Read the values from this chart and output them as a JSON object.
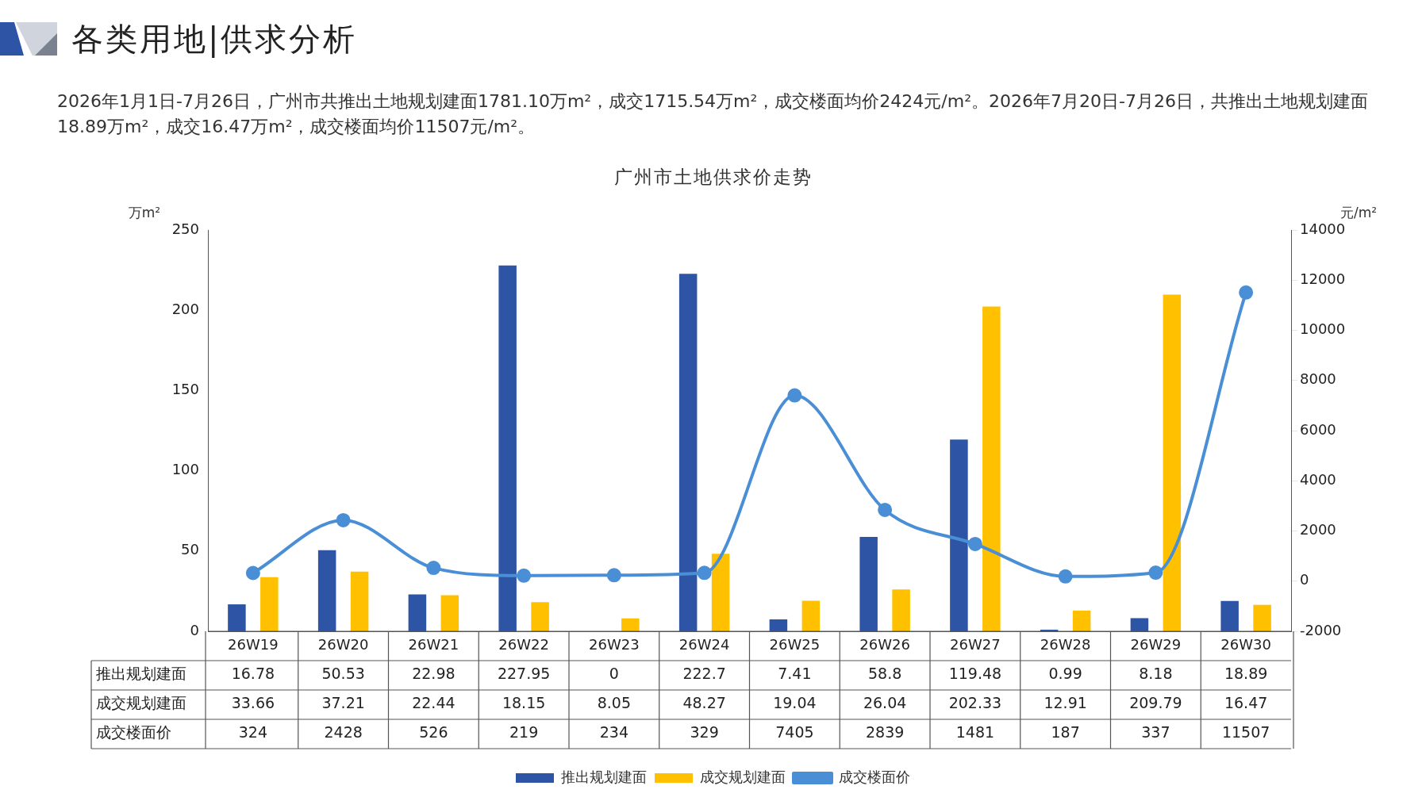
{
  "chart_data": {
    "type": "bar",
    "title": "广州市土地供求价走势",
    "subtitle": "各类用地|供求分析",
    "annotations": [
      "2026年1月1日-7月26日，广州市共推出土地规划建面1781.10万m²，成交1715.54万m²，成交楼面均价2424元/m²。2026年7月20日-7月26日，共推出土地规划建面18.89万m²，成交16.47万m²，成交楼面均价11507元/m²。"
    ],
    "ylabel": "万m²",
    "y2label": "元/m²",
    "categories": [
      "26W19",
      "26W20",
      "26W21",
      "26W22",
      "26W23",
      "26W24",
      "26W25",
      "26W26",
      "26W27",
      "26W28",
      "26W29",
      "26W30"
    ],
    "series": [
      {
        "name": "推出规划建面",
        "color": "#2e55a5",
        "values": [
          16.78,
          50.53,
          22.98,
          227.95,
          0,
          222.7,
          7.41,
          58.8,
          119.48,
          0.99,
          8.18,
          18.89
        ]
      },
      {
        "name": "成交规划建面",
        "color": "#ffc000",
        "values": [
          33.66,
          37.21,
          22.44,
          18.15,
          8.05,
          48.27,
          19.04,
          26.04,
          202.33,
          12.91,
          209.79,
          16.47
        ]
      },
      {
        "name": "成交楼面价",
        "type": "line",
        "axis": "y2",
        "color": "#4a8fd6",
        "values": [
          324,
          2428,
          526,
          219,
          234,
          329,
          7405,
          2839,
          1481,
          187,
          337,
          11507
        ]
      }
    ],
    "ylim": [
      0,
      250
    ],
    "yticks": [
      0,
      50,
      100,
      150,
      200,
      250
    ],
    "y2lim": [
      -2000,
      14000
    ],
    "y2ticks": [
      -2000,
      0,
      2000,
      4000,
      6000,
      8000,
      10000,
      12000,
      14000
    ],
    "grid": false,
    "legend": "bottom",
    "marker": "circle",
    "data_labels": true
  }
}
